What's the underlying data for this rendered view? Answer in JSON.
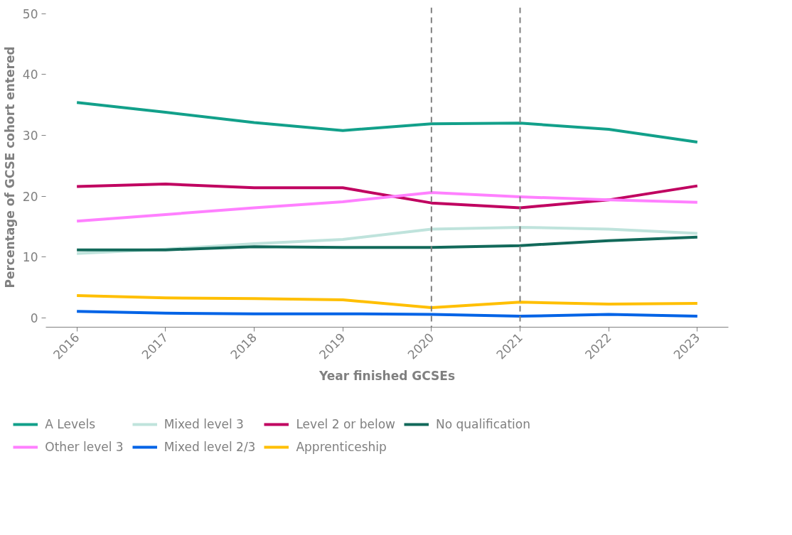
{
  "chart_data": {
    "type": "line",
    "xlabel": "Year finished GCSEs",
    "ylabel": "Percentage of GCSE cohort entered",
    "x": [
      2016,
      2017,
      2018,
      2019,
      2020,
      2021,
      2022,
      2023
    ],
    "xlim": [
      2015.65,
      2023.35
    ],
    "xticks": [
      2016,
      2017,
      2018,
      2019,
      2020,
      2021,
      2022,
      2023
    ],
    "ylim": [
      -1.5,
      51
    ],
    "yticks": [
      0,
      10,
      20,
      30,
      40,
      50
    ],
    "grid": false,
    "legend": "bottom",
    "line_style": "solid",
    "marker": "none",
    "ref_lines": [
      {
        "axis": "x",
        "value": 2020,
        "color": "#808080",
        "line_style": "dashed"
      },
      {
        "axis": "x",
        "value": 2021,
        "color": "#808080",
        "line_style": "dashed"
      }
    ],
    "series": [
      {
        "name": "A Levels",
        "color": "#12a08a",
        "values": [
          35.4,
          33.8,
          32.1,
          30.8,
          31.9,
          32.0,
          31.0,
          28.9
        ]
      },
      {
        "name": "Mixed level 3",
        "color": "#bfe3dc",
        "values": [
          10.6,
          11.3,
          12.2,
          12.9,
          14.6,
          14.9,
          14.6,
          13.9
        ]
      },
      {
        "name": "Level 2 or below",
        "color": "#c00060",
        "values": [
          21.6,
          22.0,
          21.4,
          21.4,
          18.9,
          18.1,
          19.4,
          21.7
        ]
      },
      {
        "name": "No qualification",
        "color": "#12695a",
        "values": [
          11.2,
          11.2,
          11.7,
          11.6,
          11.6,
          11.9,
          12.7,
          13.3
        ]
      },
      {
        "name": "Other level 3",
        "color": "#ff80ff",
        "values": [
          15.9,
          17.0,
          18.1,
          19.1,
          20.6,
          19.9,
          19.4,
          19.0
        ]
      },
      {
        "name": "Mixed level 2/3",
        "color": "#0063e6",
        "values": [
          1.1,
          0.8,
          0.7,
          0.7,
          0.6,
          0.3,
          0.6,
          0.3
        ]
      },
      {
        "name": "Apprenticeship",
        "color": "#ffbf00",
        "values": [
          3.7,
          3.3,
          3.2,
          3.0,
          1.7,
          2.6,
          2.3,
          2.4
        ]
      }
    ]
  }
}
